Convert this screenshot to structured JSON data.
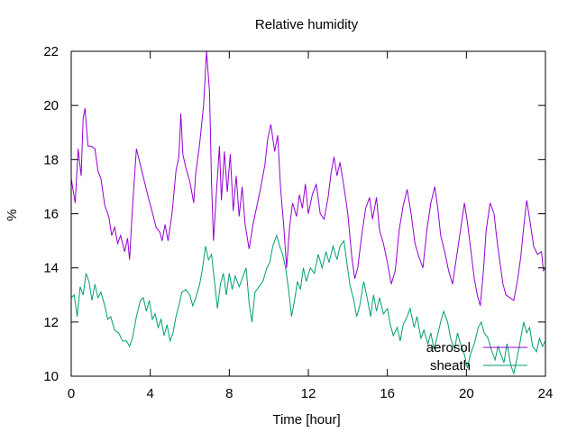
{
  "chart_data": {
    "type": "line",
    "title": "Relative humidity",
    "xlabel": "Time [hour]",
    "ylabel": "%",
    "xlim": [
      0,
      24
    ],
    "ylim": [
      10,
      22
    ],
    "xticks": [
      0,
      4,
      8,
      12,
      16,
      20,
      24
    ],
    "yticks": [
      10,
      12,
      14,
      16,
      18,
      20,
      22
    ],
    "grid": false,
    "legend_position": "bottom-right",
    "series": [
      {
        "name": "aerosol",
        "color": "#9400d3",
        "points": [
          [
            0.0,
            17.3
          ],
          [
            0.2,
            16.4
          ],
          [
            0.35,
            18.4
          ],
          [
            0.5,
            17.4
          ],
          [
            0.6,
            19.5
          ],
          [
            0.7,
            19.9
          ],
          [
            0.85,
            18.5
          ],
          [
            1.0,
            18.5
          ],
          [
            1.2,
            18.4
          ],
          [
            1.35,
            17.6
          ],
          [
            1.5,
            17.3
          ],
          [
            1.7,
            16.3
          ],
          [
            1.9,
            15.9
          ],
          [
            2.05,
            15.2
          ],
          [
            2.2,
            15.5
          ],
          [
            2.35,
            14.9
          ],
          [
            2.5,
            15.2
          ],
          [
            2.7,
            14.6
          ],
          [
            2.85,
            15.1
          ],
          [
            2.95,
            14.3
          ],
          [
            3.1,
            16.2
          ],
          [
            3.3,
            18.4
          ],
          [
            3.5,
            17.8
          ],
          [
            3.7,
            17.2
          ],
          [
            3.9,
            16.6
          ],
          [
            4.05,
            16.2
          ],
          [
            4.3,
            15.5
          ],
          [
            4.5,
            15.3
          ],
          [
            4.6,
            15.0
          ],
          [
            4.75,
            15.6
          ],
          [
            4.9,
            15.0
          ],
          [
            5.1,
            16.0
          ],
          [
            5.3,
            17.6
          ],
          [
            5.45,
            18.1
          ],
          [
            5.55,
            19.7
          ],
          [
            5.65,
            18.2
          ],
          [
            5.8,
            17.7
          ],
          [
            6.0,
            17.2
          ],
          [
            6.2,
            16.4
          ],
          [
            6.3,
            17.5
          ],
          [
            6.5,
            18.6
          ],
          [
            6.7,
            20.0
          ],
          [
            6.85,
            22.0
          ],
          [
            7.0,
            20.5
          ],
          [
            7.1,
            17.2
          ],
          [
            7.2,
            15.0
          ],
          [
            7.35,
            16.8
          ],
          [
            7.5,
            18.5
          ],
          [
            7.6,
            16.5
          ],
          [
            7.75,
            18.3
          ],
          [
            7.9,
            16.8
          ],
          [
            8.05,
            18.2
          ],
          [
            8.2,
            16.1
          ],
          [
            8.35,
            17.4
          ],
          [
            8.5,
            15.9
          ],
          [
            8.65,
            17.0
          ],
          [
            8.8,
            15.6
          ],
          [
            9.0,
            14.7
          ],
          [
            9.2,
            15.6
          ],
          [
            9.4,
            16.3
          ],
          [
            9.6,
            17.0
          ],
          [
            9.8,
            17.8
          ],
          [
            9.95,
            18.8
          ],
          [
            10.1,
            19.3
          ],
          [
            10.3,
            18.3
          ],
          [
            10.45,
            18.9
          ],
          [
            10.6,
            16.9
          ],
          [
            10.75,
            15.6
          ],
          [
            10.9,
            14.0
          ],
          [
            11.05,
            15.5
          ],
          [
            11.2,
            16.4
          ],
          [
            11.4,
            15.9
          ],
          [
            11.55,
            16.7
          ],
          [
            11.7,
            16.2
          ],
          [
            11.85,
            17.1
          ],
          [
            12.0,
            16.0
          ],
          [
            12.2,
            16.7
          ],
          [
            12.4,
            17.1
          ],
          [
            12.6,
            16.0
          ],
          [
            12.8,
            15.8
          ],
          [
            13.0,
            16.6
          ],
          [
            13.15,
            17.5
          ],
          [
            13.3,
            18.1
          ],
          [
            13.45,
            17.4
          ],
          [
            13.6,
            17.9
          ],
          [
            13.8,
            17.0
          ],
          [
            14.0,
            16.0
          ],
          [
            14.2,
            14.4
          ],
          [
            14.35,
            13.6
          ],
          [
            14.5,
            14.0
          ],
          [
            14.7,
            15.2
          ],
          [
            14.9,
            16.2
          ],
          [
            15.1,
            16.6
          ],
          [
            15.25,
            15.8
          ],
          [
            15.45,
            16.6
          ],
          [
            15.6,
            15.4
          ],
          [
            15.8,
            14.9
          ],
          [
            16.0,
            14.2
          ],
          [
            16.2,
            13.4
          ],
          [
            16.4,
            13.9
          ],
          [
            16.6,
            15.4
          ],
          [
            16.8,
            16.3
          ],
          [
            17.0,
            16.9
          ],
          [
            17.2,
            16.0
          ],
          [
            17.4,
            14.9
          ],
          [
            17.6,
            14.4
          ],
          [
            17.8,
            14.0
          ],
          [
            18.0,
            15.4
          ],
          [
            18.2,
            16.4
          ],
          [
            18.4,
            17.0
          ],
          [
            18.55,
            16.2
          ],
          [
            18.7,
            15.2
          ],
          [
            18.9,
            14.6
          ],
          [
            19.1,
            13.9
          ],
          [
            19.3,
            13.4
          ],
          [
            19.5,
            14.4
          ],
          [
            19.7,
            15.4
          ],
          [
            19.9,
            16.4
          ],
          [
            20.05,
            15.7
          ],
          [
            20.2,
            14.8
          ],
          [
            20.4,
            13.6
          ],
          [
            20.55,
            13.0
          ],
          [
            20.7,
            12.6
          ],
          [
            20.85,
            13.8
          ],
          [
            21.0,
            15.4
          ],
          [
            21.2,
            16.4
          ],
          [
            21.4,
            16.0
          ],
          [
            21.55,
            15.0
          ],
          [
            21.7,
            14.2
          ],
          [
            21.85,
            13.4
          ],
          [
            22.0,
            13.0
          ],
          [
            22.2,
            12.9
          ],
          [
            22.4,
            12.8
          ],
          [
            22.6,
            13.6
          ],
          [
            22.75,
            14.4
          ],
          [
            22.9,
            15.5
          ],
          [
            23.05,
            16.5
          ],
          [
            23.2,
            15.8
          ],
          [
            23.4,
            14.8
          ],
          [
            23.6,
            14.5
          ],
          [
            23.8,
            14.6
          ],
          [
            23.9,
            13.9
          ],
          [
            24.0,
            14.0
          ]
        ]
      },
      {
        "name": "sheath",
        "color": "#009e73",
        "points": [
          [
            0.0,
            12.9
          ],
          [
            0.15,
            13.0
          ],
          [
            0.3,
            12.2
          ],
          [
            0.45,
            13.3
          ],
          [
            0.6,
            13.0
          ],
          [
            0.75,
            13.8
          ],
          [
            0.9,
            13.5
          ],
          [
            1.05,
            12.8
          ],
          [
            1.2,
            13.4
          ],
          [
            1.35,
            12.9
          ],
          [
            1.5,
            13.1
          ],
          [
            1.7,
            12.6
          ],
          [
            1.85,
            12.1
          ],
          [
            2.0,
            12.2
          ],
          [
            2.2,
            11.7
          ],
          [
            2.4,
            11.6
          ],
          [
            2.6,
            11.3
          ],
          [
            2.8,
            11.3
          ],
          [
            2.95,
            11.1
          ],
          [
            3.1,
            11.4
          ],
          [
            3.3,
            12.2
          ],
          [
            3.5,
            12.8
          ],
          [
            3.65,
            12.9
          ],
          [
            3.8,
            12.4
          ],
          [
            3.95,
            12.8
          ],
          [
            4.1,
            12.1
          ],
          [
            4.25,
            12.3
          ],
          [
            4.4,
            11.8
          ],
          [
            4.55,
            12.1
          ],
          [
            4.7,
            11.5
          ],
          [
            4.85,
            11.9
          ],
          [
            5.0,
            11.3
          ],
          [
            5.15,
            11.6
          ],
          [
            5.3,
            12.2
          ],
          [
            5.45,
            12.6
          ],
          [
            5.6,
            13.1
          ],
          [
            5.8,
            13.2
          ],
          [
            6.0,
            13.0
          ],
          [
            6.15,
            12.6
          ],
          [
            6.3,
            12.9
          ],
          [
            6.5,
            13.4
          ],
          [
            6.65,
            14.0
          ],
          [
            6.8,
            14.8
          ],
          [
            6.95,
            14.3
          ],
          [
            7.1,
            14.5
          ],
          [
            7.25,
            13.5
          ],
          [
            7.4,
            12.5
          ],
          [
            7.55,
            13.4
          ],
          [
            7.7,
            13.8
          ],
          [
            7.85,
            13.0
          ],
          [
            8.0,
            13.8
          ],
          [
            8.15,
            13.2
          ],
          [
            8.3,
            13.7
          ],
          [
            8.5,
            13.3
          ],
          [
            8.7,
            13.7
          ],
          [
            8.85,
            14.0
          ],
          [
            9.0,
            12.7
          ],
          [
            9.15,
            12.0
          ],
          [
            9.3,
            13.1
          ],
          [
            9.5,
            13.3
          ],
          [
            9.7,
            13.5
          ],
          [
            9.9,
            14.0
          ],
          [
            10.05,
            14.2
          ],
          [
            10.2,
            14.8
          ],
          [
            10.4,
            15.2
          ],
          [
            10.55,
            14.8
          ],
          [
            10.7,
            14.5
          ],
          [
            10.85,
            14.0
          ],
          [
            11.0,
            13.2
          ],
          [
            11.15,
            12.2
          ],
          [
            11.3,
            12.8
          ],
          [
            11.45,
            13.5
          ],
          [
            11.6,
            13.2
          ],
          [
            11.75,
            14.0
          ],
          [
            11.9,
            13.5
          ],
          [
            12.1,
            14.0
          ],
          [
            12.3,
            13.8
          ],
          [
            12.5,
            14.5
          ],
          [
            12.7,
            14.0
          ],
          [
            12.9,
            14.6
          ],
          [
            13.05,
            14.2
          ],
          [
            13.25,
            14.8
          ],
          [
            13.45,
            14.3
          ],
          [
            13.6,
            14.8
          ],
          [
            13.8,
            15.0
          ],
          [
            13.95,
            14.2
          ],
          [
            14.1,
            13.4
          ],
          [
            14.3,
            12.8
          ],
          [
            14.45,
            12.2
          ],
          [
            14.6,
            12.6
          ],
          [
            14.8,
            13.5
          ],
          [
            15.0,
            12.8
          ],
          [
            15.15,
            12.2
          ],
          [
            15.3,
            13.0
          ],
          [
            15.45,
            12.4
          ],
          [
            15.6,
            12.9
          ],
          [
            15.8,
            12.3
          ],
          [
            16.0,
            12.5
          ],
          [
            16.15,
            11.9
          ],
          [
            16.3,
            11.5
          ],
          [
            16.5,
            11.8
          ],
          [
            16.65,
            11.3
          ],
          [
            16.8,
            11.9
          ],
          [
            17.0,
            12.2
          ],
          [
            17.15,
            12.5
          ],
          [
            17.35,
            11.8
          ],
          [
            17.5,
            12.2
          ],
          [
            17.7,
            11.4
          ],
          [
            17.85,
            11.7
          ],
          [
            18.05,
            11.2
          ],
          [
            18.2,
            11.6
          ],
          [
            18.35,
            11.0
          ],
          [
            18.5,
            11.4
          ],
          [
            18.7,
            12.0
          ],
          [
            18.85,
            12.4
          ],
          [
            19.05,
            12.0
          ],
          [
            19.2,
            11.4
          ],
          [
            19.4,
            11.0
          ],
          [
            19.55,
            11.6
          ],
          [
            19.7,
            11.2
          ],
          [
            19.9,
            10.8
          ],
          [
            20.05,
            10.3
          ],
          [
            20.2,
            10.8
          ],
          [
            20.4,
            11.2
          ],
          [
            20.6,
            11.8
          ],
          [
            20.75,
            12.0
          ],
          [
            20.9,
            11.6
          ],
          [
            21.1,
            11.4
          ],
          [
            21.25,
            11.0
          ],
          [
            21.45,
            10.6
          ],
          [
            21.6,
            11.1
          ],
          [
            21.75,
            10.8
          ],
          [
            21.9,
            10.5
          ],
          [
            22.05,
            11.2
          ],
          [
            22.25,
            10.4
          ],
          [
            22.4,
            10.1
          ],
          [
            22.6,
            10.8
          ],
          [
            22.75,
            11.4
          ],
          [
            22.9,
            12.0
          ],
          [
            23.05,
            11.6
          ],
          [
            23.2,
            11.8
          ],
          [
            23.35,
            11.1
          ],
          [
            23.55,
            10.9
          ],
          [
            23.7,
            11.4
          ],
          [
            23.85,
            11.1
          ],
          [
            24.0,
            11.3
          ]
        ]
      }
    ]
  }
}
